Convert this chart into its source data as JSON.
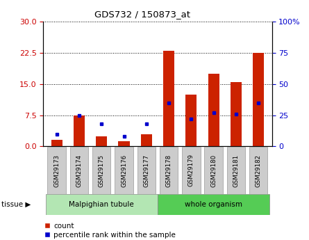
{
  "title": "GDS732 / 150873_at",
  "categories": [
    "GSM29173",
    "GSM29174",
    "GSM29175",
    "GSM29176",
    "GSM29177",
    "GSM29178",
    "GSM29179",
    "GSM29180",
    "GSM29181",
    "GSM29182"
  ],
  "count_values": [
    1.5,
    7.5,
    2.5,
    1.3,
    3.0,
    23.0,
    12.5,
    17.5,
    15.5,
    22.5
  ],
  "percentile_values": [
    10,
    25,
    18,
    8,
    18,
    35,
    22,
    27,
    26,
    35
  ],
  "left_ylim": [
    0,
    30
  ],
  "right_ylim": [
    0,
    100
  ],
  "left_yticks": [
    0,
    7.5,
    15,
    22.5,
    30
  ],
  "right_yticks": [
    0,
    25,
    50,
    75,
    100
  ],
  "right_yticklabels": [
    "0",
    "25",
    "50",
    "75",
    "100%"
  ],
  "left_color": "#cc0000",
  "right_color": "#0000cc",
  "bar_color": "#cc2200",
  "dot_color": "#0000cc",
  "tissue_groups": [
    {
      "label": "Malpighian tubule",
      "start": 0,
      "end": 5,
      "color": "#b3e6b3"
    },
    {
      "label": "whole organism",
      "start": 5,
      "end": 10,
      "color": "#55cc55"
    }
  ],
  "legend_entries": [
    "count",
    "percentile rank within the sample"
  ],
  "tissue_label": "tissue"
}
